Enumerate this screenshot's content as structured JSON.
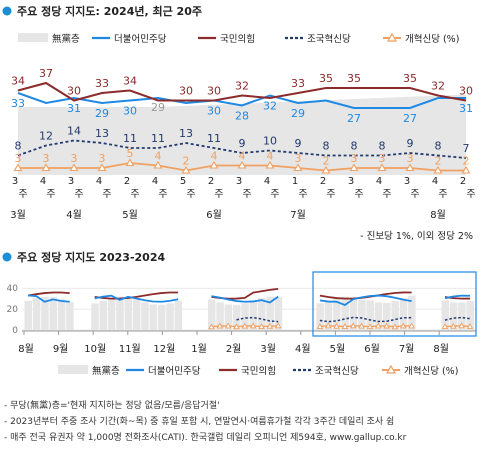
{
  "colors": {
    "minjoo": "#1e88e5",
    "ppp": "#8b2b2b",
    "jogook": "#233a6e",
    "reform": "#f0a060",
    "none_area": "#e6e6e6",
    "header_dot": "#1a8fd6"
  },
  "legend": {
    "none": "無黨층",
    "minjoo": "더불어민주당",
    "ppp": "국민의힘",
    "jogook": "조국혁신당",
    "reform": "개혁신당 (%)"
  },
  "chart_data": [
    {
      "type": "line",
      "title": "주요 정당 지지도: 2024년, 최근 20주",
      "categories": [
        "3주",
        "4주",
        "3주",
        "4주",
        "2주",
        "4주",
        "5주",
        "2주",
        "3주",
        "4주",
        "1주",
        "2주",
        "3주",
        "4주",
        "3주",
        "4주",
        "2주"
      ],
      "weeks": [
        "3",
        "4",
        "3",
        "4",
        "2",
        "4",
        "5",
        "2",
        "3",
        "4",
        "1",
        "2",
        "3",
        "4",
        "3",
        "4",
        "2"
      ],
      "months": [
        {
          "label": "3월",
          "at": 0
        },
        {
          "label": "4월",
          "at": 2
        },
        {
          "label": "5월",
          "at": 4
        },
        {
          "label": "6월",
          "at": 7
        },
        {
          "label": "7월",
          "at": 10
        },
        {
          "label": "8월",
          "at": 15
        }
      ],
      "ylim": [
        0,
        40
      ],
      "series": [
        {
          "name": "더불어민주당",
          "key": "minjoo",
          "values": [
            33,
            29,
            31,
            29,
            30,
            31,
            29,
            30,
            28,
            32,
            29,
            30,
            27,
            27,
            27,
            31,
            31
          ],
          "labels": [
            "33",
            "",
            "31",
            "29",
            "30",
            "",
            "",
            "30",
            "28",
            "32",
            "29",
            "",
            "27",
            "",
            "27",
            "",
            "31"
          ]
        },
        {
          "name": "국민의힘",
          "key": "ppp",
          "values": [
            34,
            37,
            30,
            33,
            34,
            30,
            30,
            30,
            32,
            31,
            33,
            35,
            35,
            35,
            35,
            32,
            30
          ],
          "labels": [
            "34",
            "37",
            "30",
            "33",
            "34",
            "",
            "30",
            "30",
            "32",
            "",
            "33",
            "35",
            "35",
            "",
            "35",
            "32",
            "30"
          ]
        },
        {
          "name": "조국혁신당",
          "key": "jogook",
          "values": [
            8,
            12,
            14,
            13,
            11,
            11,
            13,
            11,
            9,
            10,
            9,
            8,
            8,
            8,
            9,
            8,
            7
          ],
          "labels": [
            "8",
            "12",
            "14",
            "13",
            "11",
            "11",
            "13",
            "11",
            "9",
            "10",
            "9",
            "8",
            "8",
            "8",
            "9",
            "8",
            "7"
          ]
        },
        {
          "name": "개혁신당",
          "key": "reform",
          "values": [
            3,
            3,
            3,
            3,
            5,
            4,
            2,
            4,
            4,
            4,
            3,
            2,
            3,
            3,
            3,
            2,
            2
          ],
          "labels": [
            "3",
            "3",
            "3",
            "3",
            "5",
            "4",
            "2",
            "4",
            "4",
            "4",
            "3",
            "2",
            "3",
            "3",
            "3",
            "2",
            "2"
          ]
        },
        {
          "name": "無黨층",
          "key": "none",
          "values": [
            null,
            null,
            null,
            null,
            null,
            29,
            null,
            null,
            null,
            null,
            null,
            null,
            null,
            null,
            null,
            null,
            34
          ],
          "labels": [
            "",
            "",
            "",
            "",
            "",
            "29",
            "",
            "",
            "",
            "",
            "",
            "",
            "",
            "",
            "",
            "",
            ""
          ]
        }
      ],
      "footnote": "- 진보당 1%, 이외 정당 2%"
    },
    {
      "type": "line",
      "title": "주요 정당 지지도 2023-2024",
      "yticks": [
        "40",
        "20",
        "0"
      ],
      "ylim": [
        0,
        45
      ],
      "months": [
        "8월",
        "9월",
        "10월",
        "11월",
        "12월",
        "1월",
        "2월",
        "3월",
        "4월",
        "5월",
        "6월",
        "7월",
        "8월"
      ],
      "highlight_from_month": "5월"
    }
  ],
  "notes": [
    "- 무당(無黨)층='현재 지지하는 정당 없음/모름/응답거절'",
    "- 2023년부터 주중 조사 기간(화~목) 중 휴일 포함 시, 연말연시·여름휴가철 각각 3주간 데일리 조사 쉼",
    "- 매주 전국 유권자 약 1,000명 전화조사(CATI). 한국갤럽 데일리 오피니언 제594호, www.gallup.co.kr"
  ]
}
